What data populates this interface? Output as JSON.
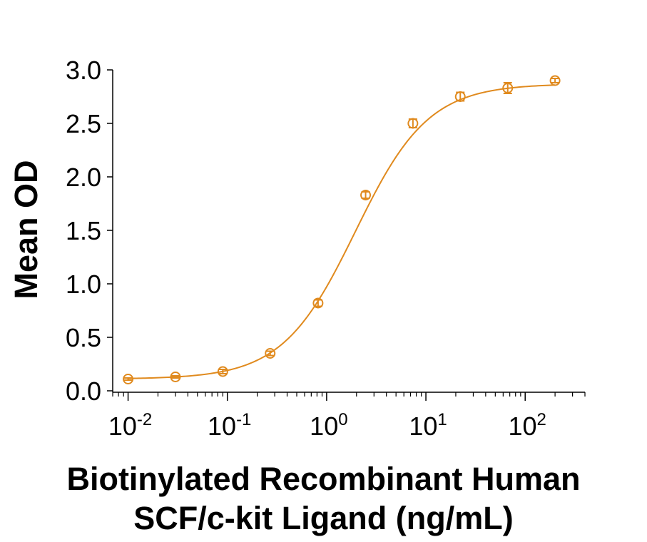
{
  "chart_data": {
    "type": "scatter",
    "title": "",
    "ylabel": "Mean OD",
    "xlabel_lines": [
      "Biotinylated Recombinant Human",
      "SCF/c-kit Ligand (ng/mL)"
    ],
    "x_scale": "log",
    "xlim": [
      0.007,
      400
    ],
    "ylim": [
      0,
      3
    ],
    "y_ticks": [
      "0.0",
      "0.5",
      "1.0",
      "1.5",
      "2.0",
      "2.5",
      "3.0"
    ],
    "x_ticks": [
      {
        "base": "10",
        "exp": "-2",
        "value": 0.01
      },
      {
        "base": "10",
        "exp": "-1",
        "value": 0.1
      },
      {
        "base": "10",
        "exp": "0",
        "value": 1
      },
      {
        "base": "10",
        "exp": "1",
        "value": 10
      },
      {
        "base": "10",
        "exp": "2",
        "value": 100
      }
    ],
    "grid": false,
    "color": "#e08a1e",
    "series": [
      {
        "x": [
          0.01,
          0.03,
          0.09,
          0.27,
          0.82,
          2.47,
          7.4,
          22.2,
          66.7,
          200
        ],
        "y": [
          0.11,
          0.13,
          0.18,
          0.35,
          0.82,
          1.83,
          2.5,
          2.75,
          2.83,
          2.9
        ],
        "err": [
          0.01,
          0.01,
          0.02,
          0.02,
          0.03,
          0.03,
          0.04,
          0.04,
          0.05,
          0.02
        ],
        "fit": "four-parameter logistic"
      }
    ]
  }
}
